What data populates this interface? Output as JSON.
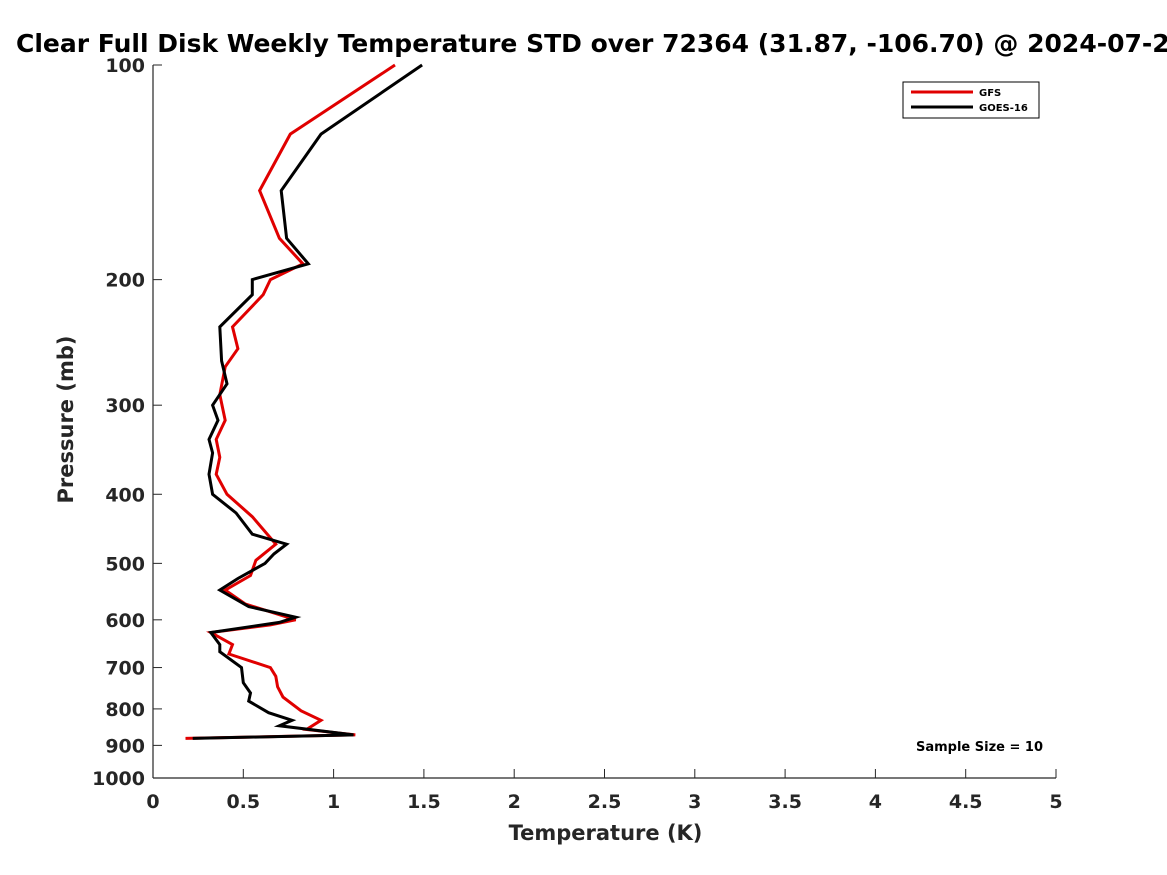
{
  "chart_data": {
    "type": "line",
    "title": "Clear Full Disk Weekly Temperature STD over 72364 (31.87, -106.70) @ 2024-07-2",
    "xlabel": "Temperature (K)",
    "ylabel": "Pressure (mb)",
    "xlim": [
      0,
      5
    ],
    "ylim": [
      100,
      1000
    ],
    "y_scale": "log",
    "y_reversed": true,
    "x_ticks": [
      "0",
      "0.5",
      "1",
      "1.5",
      "2",
      "2.5",
      "3",
      "3.5",
      "4",
      "4.5",
      "5"
    ],
    "y_ticks": [
      "100",
      "200",
      "300",
      "400",
      "500",
      "600",
      "700",
      "800",
      "900",
      "1000"
    ],
    "grid": false,
    "legend_position": "top-right",
    "annotation": "Sample Size = 10",
    "series": [
      {
        "name": "GFS",
        "color": "#e00000",
        "points": [
          [
            1.34,
            100
          ],
          [
            0.76,
            125
          ],
          [
            0.59,
            150
          ],
          [
            0.7,
            175
          ],
          [
            0.83,
            190
          ],
          [
            0.65,
            200
          ],
          [
            0.61,
            210
          ],
          [
            0.44,
            233
          ],
          [
            0.47,
            250
          ],
          [
            0.4,
            265
          ],
          [
            0.37,
            290
          ],
          [
            0.4,
            315
          ],
          [
            0.35,
            335
          ],
          [
            0.37,
            355
          ],
          [
            0.35,
            375
          ],
          [
            0.41,
            400
          ],
          [
            0.55,
            430
          ],
          [
            0.68,
            470
          ],
          [
            0.57,
            495
          ],
          [
            0.54,
            520
          ],
          [
            0.4,
            545
          ],
          [
            0.51,
            570
          ],
          [
            0.79,
            600
          ],
          [
            0.65,
            610
          ],
          [
            0.32,
            625
          ],
          [
            0.44,
            650
          ],
          [
            0.42,
            670
          ],
          [
            0.65,
            700
          ],
          [
            0.68,
            720
          ],
          [
            0.69,
            745
          ],
          [
            0.72,
            770
          ],
          [
            0.82,
            805
          ],
          [
            0.93,
            830
          ],
          [
            0.85,
            855
          ],
          [
            1.12,
            870
          ],
          [
            0.18,
            880
          ]
        ]
      },
      {
        "name": "GOES-16",
        "color": "#000000",
        "points": [
          [
            1.49,
            100
          ],
          [
            0.93,
            125
          ],
          [
            0.71,
            150
          ],
          [
            0.74,
            175
          ],
          [
            0.86,
            190
          ],
          [
            0.55,
            200
          ],
          [
            0.55,
            210
          ],
          [
            0.37,
            233
          ],
          [
            0.38,
            260
          ],
          [
            0.41,
            280
          ],
          [
            0.33,
            300
          ],
          [
            0.36,
            315
          ],
          [
            0.31,
            335
          ],
          [
            0.33,
            350
          ],
          [
            0.31,
            375
          ],
          [
            0.33,
            400
          ],
          [
            0.46,
            425
          ],
          [
            0.55,
            455
          ],
          [
            0.74,
            470
          ],
          [
            0.67,
            485
          ],
          [
            0.62,
            500
          ],
          [
            0.47,
            525
          ],
          [
            0.37,
            545
          ],
          [
            0.53,
            575
          ],
          [
            0.79,
            595
          ],
          [
            0.7,
            605
          ],
          [
            0.32,
            625
          ],
          [
            0.37,
            650
          ],
          [
            0.37,
            665
          ],
          [
            0.49,
            700
          ],
          [
            0.5,
            735
          ],
          [
            0.54,
            760
          ],
          [
            0.53,
            780
          ],
          [
            0.64,
            810
          ],
          [
            0.77,
            830
          ],
          [
            0.7,
            845
          ],
          [
            1.11,
            870
          ],
          [
            0.22,
            880
          ]
        ]
      }
    ]
  }
}
